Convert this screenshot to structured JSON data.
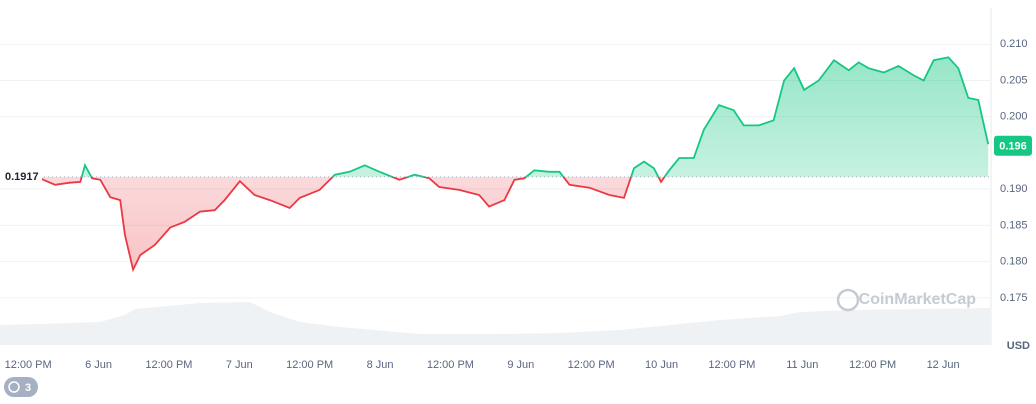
{
  "chart_data": {
    "type": "line",
    "x": [
      -10.0,
      -7.4,
      -4.9,
      -3.1,
      -2.3,
      -1.1,
      0.3,
      2.0,
      3.7,
      4.5,
      5.9,
      7.1,
      9.6,
      12.2,
      14.7,
      17.3,
      19.8,
      21.5,
      24.1,
      26.6,
      29.2,
      32.6,
      34.3,
      37.7,
      40.3,
      42.8,
      45.4,
      47.9,
      51.3,
      53.9,
      56.4,
      58.1,
      61.5,
      64.9,
      66.6,
      69.2,
      70.9,
      72.6,
      74.3,
      76.9,
      78.6,
      80.3,
      83.7,
      87.1,
      89.6,
      91.3,
      93.0,
      94.7,
      95.9,
      97.3,
      99.0,
      101.5,
      103.2,
      105.8,
      108.3,
      110.0,
      112.6,
      115.1,
      116.9,
      118.6,
      120.3,
      122.8,
      125.4,
      127.9,
      129.6,
      131.3,
      133.9,
      136.4,
      139.0,
      140.7,
      142.4,
      144.9,
      146.6,
      148.3,
      150.0,
      151.7
    ],
    "values": [
      0.1915,
      0.1906,
      0.1909,
      0.191,
      0.1933,
      0.1915,
      0.1913,
      0.1889,
      0.1885,
      0.1837,
      0.1789,
      0.1809,
      0.1823,
      0.1847,
      0.1855,
      0.1869,
      0.1871,
      0.1885,
      0.1911,
      0.1892,
      0.1885,
      0.1874,
      0.1888,
      0.1899,
      0.192,
      0.1924,
      0.1933,
      0.1924,
      0.1913,
      0.192,
      0.1915,
      0.1903,
      0.1899,
      0.1892,
      0.1876,
      0.1885,
      0.1913,
      0.1915,
      0.1926,
      0.1924,
      0.1924,
      0.1906,
      0.1902,
      0.1892,
      0.1888,
      0.1929,
      0.1938,
      0.1929,
      0.191,
      0.1926,
      0.1943,
      0.1943,
      0.1982,
      0.2016,
      0.2009,
      0.1988,
      0.1988,
      0.1995,
      0.205,
      0.2067,
      0.2037,
      0.205,
      0.2078,
      0.2064,
      0.2075,
      0.2067,
      0.2061,
      0.207,
      0.2057,
      0.205,
      0.2078,
      0.2082,
      0.2067,
      0.2026,
      0.2023,
      0.1962
    ],
    "up_color": "#16c784",
    "down_color": "#ea3943",
    "baseline": 0.1917,
    "current_price": 0.196,
    "xlim": [
      -16.8,
      152
    ],
    "xticks": [
      {
        "value": -12,
        "label": "12:00 PM"
      },
      {
        "value": 0,
        "label": "6 Jun"
      },
      {
        "value": 12,
        "label": "12:00 PM"
      },
      {
        "value": 24,
        "label": "7 Jun"
      },
      {
        "value": 36,
        "label": "12:00 PM"
      },
      {
        "value": 48,
        "label": "8 Jun"
      },
      {
        "value": 60,
        "label": "12:00 PM"
      },
      {
        "value": 72,
        "label": "9 Jun"
      },
      {
        "value": 84,
        "label": "12:00 PM"
      },
      {
        "value": 96,
        "label": "10 Jun"
      },
      {
        "value": 108,
        "label": "12:00 PM"
      },
      {
        "value": 120,
        "label": "11 Jun"
      },
      {
        "value": 132,
        "label": "12:00 PM"
      },
      {
        "value": 144,
        "label": "12 Jun"
      }
    ],
    "ylim": [
      0.1685,
      0.215
    ],
    "yticks": [
      {
        "value": 0.21,
        "label": "0.210"
      },
      0.205,
      {
        "value": 0.2,
        "label": "0.200"
      },
      {
        "value": 0.19,
        "label": "0.190"
      },
      0.185,
      {
        "value": 0.18,
        "label": "0.180"
      },
      0.175
    ],
    "grid": true,
    "y_unit": "USD",
    "watermark": "CoinMarketCap"
  },
  "history_badge": "3"
}
